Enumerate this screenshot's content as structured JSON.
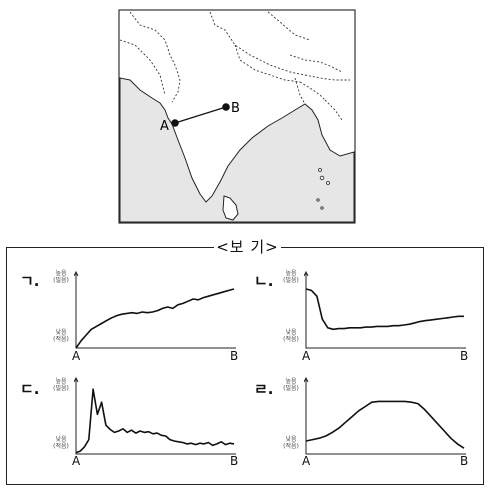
{
  "map": {
    "point_a_label": "A",
    "point_b_label": "B",
    "land_color": "#ffffff",
    "sea_color": "#e6e6e6"
  },
  "box_title": "<보 기>",
  "y_axis_top": [
    "높음",
    "(밀음)"
  ],
  "y_axis_bottom": [
    "낮음",
    "(적음)"
  ],
  "x_axis": {
    "start": "A",
    "end": "B"
  },
  "charts": [
    {
      "label": "ㄱ.",
      "chart_data": {
        "type": "line",
        "x_start": "A",
        "x_end": "B",
        "y": [
          0.0,
          0.1,
          0.18,
          0.26,
          0.3,
          0.34,
          0.38,
          0.42,
          0.45,
          0.47,
          0.48,
          0.49,
          0.48,
          0.5,
          0.49,
          0.5,
          0.52,
          0.55,
          0.57,
          0.55,
          0.6,
          0.62,
          0.65,
          0.68,
          0.67,
          0.7,
          0.72,
          0.74,
          0.76,
          0.78,
          0.8,
          0.82
        ]
      }
    },
    {
      "label": "ㄴ.",
      "chart_data": {
        "type": "line",
        "x_start": "A",
        "x_end": "B",
        "y": [
          0.82,
          0.8,
          0.72,
          0.4,
          0.28,
          0.26,
          0.27,
          0.27,
          0.28,
          0.28,
          0.28,
          0.29,
          0.29,
          0.3,
          0.3,
          0.3,
          0.31,
          0.31,
          0.32,
          0.33,
          0.35,
          0.37,
          0.38,
          0.39,
          0.4,
          0.41,
          0.42,
          0.43,
          0.44,
          0.44
        ]
      }
    },
    {
      "label": "ㄷ.",
      "chart_data": {
        "type": "line",
        "x_start": "A",
        "x_end": "B",
        "y": [
          0.02,
          0.04,
          0.1,
          0.2,
          0.9,
          0.55,
          0.72,
          0.4,
          0.34,
          0.3,
          0.32,
          0.35,
          0.3,
          0.33,
          0.29,
          0.32,
          0.3,
          0.31,
          0.28,
          0.29,
          0.26,
          0.25,
          0.2,
          0.18,
          0.17,
          0.16,
          0.14,
          0.15,
          0.13,
          0.15,
          0.14,
          0.16,
          0.12,
          0.14,
          0.17,
          0.13,
          0.15,
          0.14
        ]
      }
    },
    {
      "label": "ㄹ.",
      "chart_data": {
        "type": "line",
        "x_start": "A",
        "x_end": "B",
        "y": [
          0.18,
          0.2,
          0.22,
          0.25,
          0.3,
          0.36,
          0.44,
          0.52,
          0.6,
          0.66,
          0.72,
          0.73,
          0.73,
          0.73,
          0.73,
          0.73,
          0.72,
          0.7,
          0.62,
          0.52,
          0.42,
          0.32,
          0.22,
          0.14,
          0.08
        ]
      }
    }
  ]
}
